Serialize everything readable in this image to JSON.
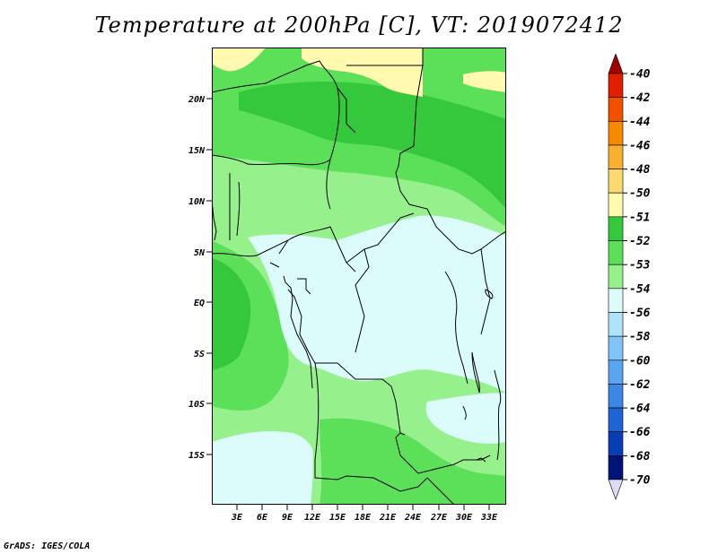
{
  "title": "Temperature at 200hPa [C], VT: 2019072412",
  "footer": "GrADS: IGES/COLA",
  "map": {
    "lat_labels": [
      "20N",
      "15N",
      "10N",
      "5N",
      "EQ",
      "5S",
      "10S",
      "15S"
    ],
    "lon_labels": [
      "3E",
      "6E",
      "9E",
      "12E",
      "15E",
      "18E",
      "21E",
      "24E",
      "27E",
      "30E",
      "33E"
    ]
  },
  "colorbar": {
    "labels": [
      "-40",
      "-42",
      "-44",
      "-46",
      "-48",
      "-50",
      "-51",
      "-52",
      "-53",
      "-54",
      "-56",
      "-58",
      "-60",
      "-62",
      "-64",
      "-66",
      "-68",
      "-70"
    ],
    "colors": [
      "#a00000",
      "#e01e00",
      "#f05000",
      "#f58a00",
      "#f8b030",
      "#fbd870",
      "#fffab0",
      "#35c83c",
      "#5ce05a",
      "#96f08c",
      "#dcfcfc",
      "#b0e2fc",
      "#80c4f8",
      "#5aa5f0",
      "#3c86e6",
      "#1e64d2",
      "#0a3cb4",
      "#001478",
      "#dcdcf5"
    ]
  }
}
